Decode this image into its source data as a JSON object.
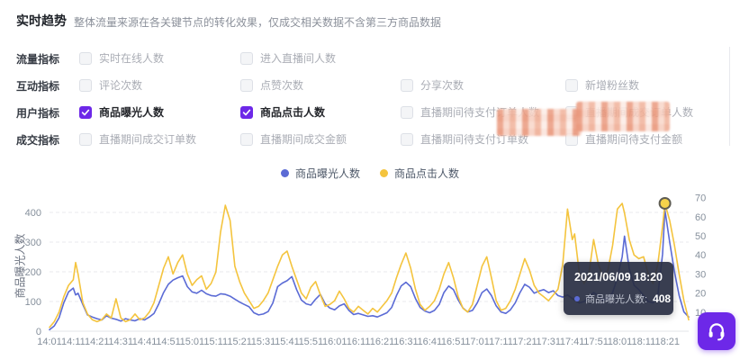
{
  "header": {
    "title": "实时趋势",
    "subtitle": "整体流量来源在各关键节点的转化效果，仅成交相关数据不含第三方商品数据"
  },
  "metrics": {
    "rows": [
      {
        "label": "流量指标",
        "items": [
          {
            "label": "实时在线人数",
            "checked": false
          },
          {
            "label": "进入直播间人数",
            "checked": false
          }
        ]
      },
      {
        "label": "互动指标",
        "items": [
          {
            "label": "评论次数",
            "checked": false
          },
          {
            "label": "点赞次数",
            "checked": false
          },
          {
            "label": "分享次数",
            "checked": false
          },
          {
            "label": "新增粉丝数",
            "checked": false
          }
        ]
      },
      {
        "label": "用户指标",
        "items": [
          {
            "label": "商品曝光人数",
            "checked": true
          },
          {
            "label": "商品点击人数",
            "checked": true
          },
          {
            "label": "直播期间待支付订单人数",
            "checked": false
          },
          {
            "label": "直播期间成交订单人数",
            "checked": false
          }
        ]
      },
      {
        "label": "成交指标",
        "items": [
          {
            "label": "直播期间成交订单数",
            "checked": false
          },
          {
            "label": "直播期间成交金额",
            "checked": false
          },
          {
            "label": "直播期间待支付订单数",
            "checked": false
          },
          {
            "label": "直播期间待支付金额",
            "checked": false
          }
        ]
      }
    ]
  },
  "legend": [
    {
      "label": "商品曝光人数",
      "color": "#5b6bd5"
    },
    {
      "label": "商品点击人数",
      "color": "#f4c43e"
    }
  ],
  "tooltip": {
    "title": "2021/06/09 18:20",
    "series_label": "商品曝光人数:",
    "value": "408"
  },
  "colors": {
    "accent_purple": "#6d28e8",
    "line_blue": "#5b6bd5",
    "line_yellow": "#f4c43e",
    "grid": "#e9eaee",
    "axis_text": "#86909c"
  },
  "chart_data": {
    "type": "line",
    "title": "实时趋势",
    "x_ticks": [
      "14:01",
      "14:11",
      "14:21",
      "14:31",
      "14:41",
      "14:51",
      "15:01",
      "15:11",
      "15:21",
      "15:31",
      "15:41",
      "15:51",
      "16:01",
      "16:11",
      "16:21",
      "16:31",
      "16:41",
      "16:51",
      "17:01",
      "17:11",
      "17:21",
      "17:31",
      "17:41",
      "17:51",
      "18:01",
      "18:11",
      "18:21"
    ],
    "y_left": {
      "label": "商品曝光人数",
      "ticks": [
        0,
        100,
        200,
        300,
        400
      ],
      "max": 460
    },
    "y_right": {
      "ticks": [
        10,
        20,
        30,
        40,
        50,
        60,
        70
      ],
      "max": 72
    },
    "grid": "dashed-horizontal",
    "legend_position": "top-center",
    "t": [
      1,
      3,
      5,
      7,
      9,
      11,
      12,
      13,
      15,
      17,
      19,
      21,
      23,
      25,
      27,
      29,
      31,
      33,
      35,
      37,
      39,
      41,
      43,
      45,
      47,
      49,
      51,
      53,
      55,
      57,
      59,
      61,
      63,
      65,
      67,
      69,
      71,
      73,
      75,
      77,
      79,
      81,
      83,
      85,
      87,
      89,
      91,
      93,
      95,
      97,
      99,
      101,
      103,
      105,
      107,
      109,
      111,
      113,
      115,
      117,
      119,
      121,
      123,
      125,
      127,
      129,
      131,
      133,
      135,
      137,
      139,
      141,
      143,
      145,
      147,
      149,
      151,
      153,
      155,
      157,
      159,
      161,
      163,
      165,
      167,
      169,
      171,
      173,
      175,
      177,
      179,
      181,
      183,
      185,
      187,
      189,
      191,
      193,
      195,
      197,
      199,
      201,
      203,
      205,
      207,
      209,
      211,
      213,
      215,
      217,
      219,
      221,
      222,
      224,
      226,
      228,
      230,
      232,
      234,
      236,
      238,
      240,
      242,
      243,
      245,
      247,
      249,
      251,
      253,
      255,
      257,
      259,
      260,
      262,
      264,
      266,
      268,
      270
    ],
    "series": [
      {
        "name": "商品曝光人数",
        "axis": "left",
        "color": "#5b6bd5",
        "values": [
          5,
          18,
          45,
          95,
          132,
          145,
          122,
          128,
          90,
          55,
          48,
          42,
          38,
          52,
          44,
          40,
          34,
          42,
          38,
          35,
          42,
          38,
          48,
          60,
          92,
          130,
          158,
          172,
          180,
          186,
          150,
          132,
          128,
          138,
          126,
          120,
          118,
          126,
          124,
          118,
          108,
          98,
          90,
          82,
          62,
          55,
          58,
          66,
          95,
          150,
          162,
          170,
          184,
          140,
          105,
          92,
          88,
          108,
          124,
          92,
          78,
          72,
          85,
          92,
          70,
          56,
          60,
          55,
          50,
          52,
          48,
          55,
          62,
          80,
          120,
          152,
          165,
          150,
          110,
          80,
          68,
          62,
          70,
          90,
          130,
          152,
          140,
          105,
          78,
          65,
          70,
          95,
          130,
          142,
          120,
          85,
          65,
          60,
          72,
          95,
          130,
          158,
          148,
          128,
          135,
          140,
          130,
          136,
          120,
          115,
          122,
          110,
          105,
          95,
          100,
          115,
          130,
          120,
          105,
          110,
          130,
          180,
          250,
          320,
          210,
          155,
          140,
          120,
          100,
          95,
          120,
          260,
          408,
          300,
          200,
          120,
          65,
          48
        ]
      },
      {
        "name": "商品点击人数",
        "axis": "right",
        "color": "#f4c43e",
        "values": [
          2,
          5,
          10,
          18,
          24,
          27,
          36,
          30,
          15,
          9,
          6,
          5,
          6,
          9,
          7,
          17,
          7,
          5,
          6,
          9,
          6,
          7,
          10,
          15,
          24,
          33,
          39,
          30,
          36,
          40,
          30,
          24,
          27,
          29,
          22,
          25,
          31,
          52,
          66,
          58,
          34,
          26,
          20,
          16,
          12,
          13,
          16,
          20,
          27,
          34,
          40,
          42,
          34,
          27,
          20,
          17,
          23,
          26,
          19,
          13,
          14,
          16,
          21,
          17,
          12,
          10,
          13,
          11,
          9,
          12,
          10,
          13,
          16,
          20,
          28,
          35,
          41,
          33,
          22,
          14,
          11,
          13,
          16,
          22,
          30,
          36,
          28,
          18,
          12,
          10,
          14,
          24,
          34,
          39,
          28,
          16,
          11,
          12,
          16,
          22,
          30,
          38,
          32,
          24,
          20,
          18,
          16,
          19,
          22,
          35,
          64,
          48,
          51,
          30,
          25,
          30,
          48,
          35,
          28,
          32,
          45,
          64,
          67,
          62,
          48,
          40,
          38,
          39,
          30,
          25,
          35,
          55,
          67,
          58,
          45,
          30,
          16,
          6
        ]
      }
    ],
    "highlight": {
      "t": 260,
      "axis": "right",
      "value": 67,
      "time": "18:20",
      "exposure_value": 408
    }
  }
}
